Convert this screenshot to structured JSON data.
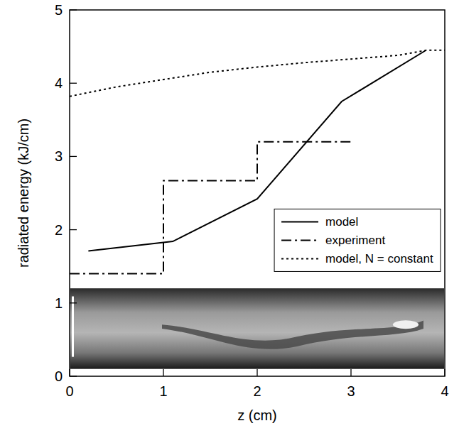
{
  "chart_data": {
    "type": "line",
    "x_label": "z (cm)",
    "y_label": "radiated energy (kJ/cm)",
    "xlim": [
      0,
      4
    ],
    "ylim": [
      0,
      5
    ],
    "xticks": [
      0,
      1,
      2,
      3,
      4
    ],
    "yticks": [
      0,
      1,
      2,
      3,
      4,
      5
    ],
    "legend": "right",
    "series": [
      {
        "name": "model",
        "color": "#000000",
        "line_style": "solid",
        "x": [
          0.2,
          1.1,
          2.0,
          2.9,
          3.8
        ],
        "values": [
          1.71,
          1.84,
          2.42,
          3.75,
          4.45
        ]
      },
      {
        "name": "experiment",
        "color": "#000000",
        "line_style": "dash-dot",
        "x": [
          0,
          1,
          1,
          2,
          2,
          3
        ],
        "values": [
          1.4,
          1.4,
          2.67,
          2.67,
          3.2,
          3.2
        ]
      },
      {
        "name": "model, N = constant",
        "color": "#000000",
        "line_style": "dotted",
        "x": [
          0,
          0.5,
          1,
          1.5,
          2,
          2.5,
          3,
          3.5,
          3.8,
          4
        ],
        "values": [
          3.82,
          3.95,
          4.05,
          4.15,
          4.22,
          4.28,
          4.33,
          4.38,
          4.45,
          4.45
        ]
      }
    ]
  }
}
